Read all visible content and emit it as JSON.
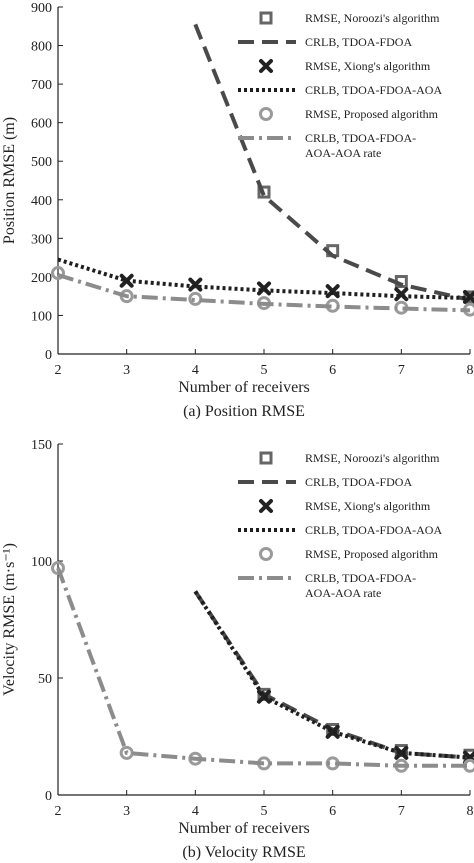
{
  "legend_entries": [
    {
      "label": "RMSE, Noroozi's algorithm",
      "kind": "marker",
      "marker": "square",
      "color": "#666666"
    },
    {
      "label": "CRLB, TDOA-FDOA",
      "kind": "line",
      "dash": "16,8",
      "color": "#4a4a4a",
      "width": 4
    },
    {
      "label": "RMSE, Xiong's algorithm",
      "kind": "marker",
      "marker": "x",
      "color": "#222222"
    },
    {
      "label": "CRLB, TDOA-FDOA-AOA",
      "kind": "line",
      "dash": "3,3",
      "color": "#1e1e1e",
      "width": 4
    },
    {
      "label": "RMSE, Proposed algorithm",
      "kind": "marker",
      "marker": "circle",
      "color": "#9a9a9a"
    },
    {
      "label": "CRLB, TDOA-FDOA-\nAOA-AOA rate",
      "kind": "line",
      "dash": "16,5,3,5",
      "color": "#8c8c8c",
      "width": 4
    }
  ],
  "chart_data": [
    {
      "type": "line",
      "caption": "(a) Position RMSE",
      "xlabel": "Number of receivers",
      "ylabel": "Position RMSE (m)",
      "xlim": [
        2,
        8
      ],
      "ylim": [
        0,
        900
      ],
      "xticks": [
        2,
        3,
        4,
        5,
        6,
        7,
        8
      ],
      "yticks": [
        0,
        100,
        200,
        300,
        400,
        500,
        600,
        700,
        800,
        900
      ],
      "series": [
        {
          "name": "RMSE, Noroozi's algorithm",
          "x": [
            5,
            6,
            7,
            8
          ],
          "y": [
            420,
            268,
            188,
            148
          ]
        },
        {
          "name": "CRLB, TDOA-FDOA",
          "x": [
            4,
            5,
            6,
            7,
            8
          ],
          "y": [
            855,
            410,
            255,
            180,
            140
          ]
        },
        {
          "name": "RMSE, Xiong's algorithm",
          "x": [
            3,
            4,
            5,
            6,
            7,
            8
          ],
          "y": [
            190,
            180,
            170,
            163,
            155,
            148
          ]
        },
        {
          "name": "CRLB, TDOA-FDOA-AOA",
          "x": [
            2,
            3,
            4,
            5,
            6,
            7,
            8
          ],
          "y": [
            245,
            190,
            175,
            165,
            158,
            150,
            145
          ]
        },
        {
          "name": "RMSE, Proposed algorithm",
          "x": [
            2,
            3,
            4,
            5,
            6,
            7,
            8
          ],
          "y": [
            210,
            150,
            143,
            132,
            125,
            120,
            115
          ]
        },
        {
          "name": "CRLB, TDOA-FDOA-\nAOA-AOA rate",
          "x": [
            2,
            3,
            4,
            5,
            6,
            7,
            8
          ],
          "y": [
            205,
            150,
            140,
            130,
            123,
            118,
            113
          ]
        }
      ]
    },
    {
      "type": "line",
      "caption": "(b) Velocity RMSE",
      "xlabel": "Number of receivers",
      "ylabel": "Velocity RMSE (m·s⁻¹)",
      "xlim": [
        2,
        8
      ],
      "ylim": [
        0,
        150
      ],
      "xticks": [
        2,
        3,
        4,
        5,
        6,
        7,
        8
      ],
      "yticks": [
        0,
        50,
        100,
        150
      ],
      "series": [
        {
          "name": "RMSE, Noroozi's algorithm",
          "x": [
            5,
            6,
            7,
            8
          ],
          "y": [
            43,
            28,
            19,
            17
          ]
        },
        {
          "name": "CRLB, TDOA-FDOA",
          "x": [
            4,
            5,
            6,
            7,
            8
          ],
          "y": [
            87,
            43,
            28,
            18,
            16
          ]
        },
        {
          "name": "RMSE, Xiong's algorithm",
          "x": [
            5,
            6,
            7,
            8
          ],
          "y": [
            42,
            27,
            18,
            16
          ]
        },
        {
          "name": "CRLB, TDOA-FDOA-AOA",
          "x": [
            4,
            5,
            6,
            7,
            8
          ],
          "y": [
            87,
            42,
            27,
            18,
            16
          ]
        },
        {
          "name": "RMSE, Proposed algorithm",
          "x": [
            2,
            3,
            4,
            5,
            6,
            7,
            8
          ],
          "y": [
            97,
            18,
            15.5,
            13.5,
            13.5,
            12.5,
            12.5
          ]
        },
        {
          "name": "CRLB, TDOA-FDOA-\nAOA-AOA rate",
          "x": [
            2,
            3,
            4,
            5,
            6,
            7,
            8
          ],
          "y": [
            97,
            18,
            15.5,
            13.5,
            13.5,
            12.5,
            12.5
          ]
        }
      ]
    }
  ]
}
